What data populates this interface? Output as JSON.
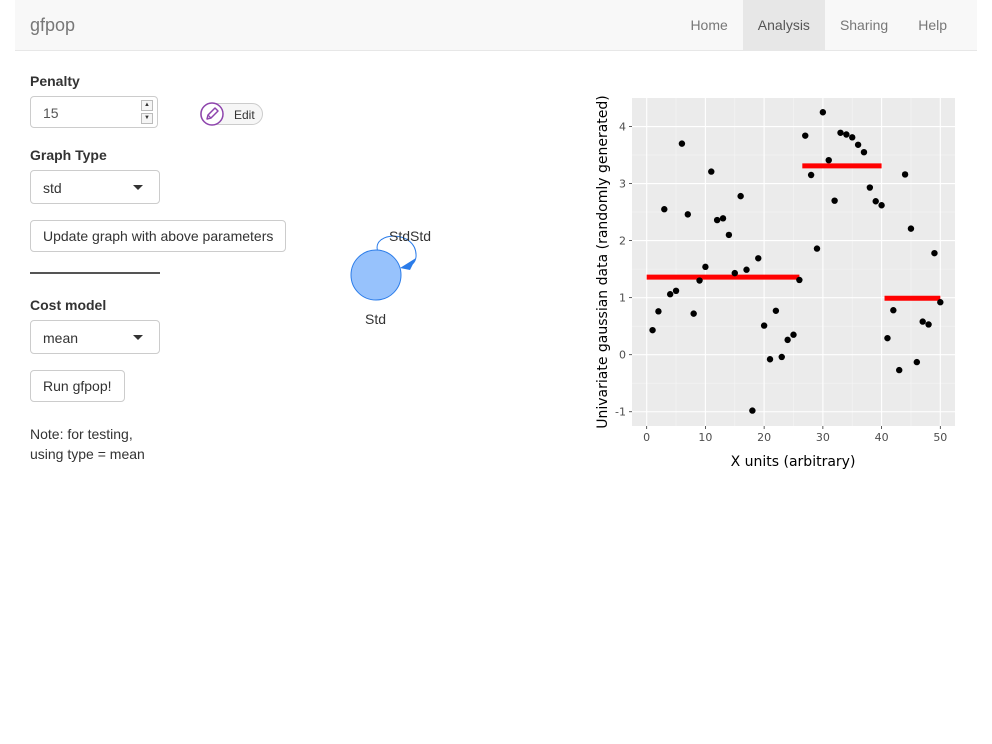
{
  "navbar": {
    "brand": "gfpop",
    "items": [
      {
        "label": "Home",
        "active": false
      },
      {
        "label": "Analysis",
        "active": true
      },
      {
        "label": "Sharing",
        "active": false
      },
      {
        "label": "Help",
        "active": false
      }
    ]
  },
  "form": {
    "penalty_label": "Penalty",
    "penalty_value": "15",
    "edit_label": "Edit",
    "graph_type_label": "Graph Type",
    "graph_type_value": "std",
    "update_button": "Update graph with above parameters",
    "cost_model_label": "Cost model",
    "cost_model_value": "mean",
    "run_button": "Run gfpop!",
    "note_line1": "Note: for testing,",
    "note_line2": "using type = mean"
  },
  "graph": {
    "node_label": "Std",
    "edge_label": "StdStd",
    "node_color": "#97c2fc",
    "node_border": "#2b7ce9"
  },
  "chart_data": {
    "type": "scatter",
    "xlabel": "X units (arbitrary)",
    "ylabel": "Univariate gaussian data (randomly generated)",
    "xlim": [
      -2.5,
      52.5
    ],
    "ylim": [
      -1.25,
      4.5
    ],
    "x_ticks": [
      0,
      10,
      20,
      30,
      40,
      50
    ],
    "y_ticks": [
      -1,
      0,
      1,
      2,
      3,
      4
    ],
    "grid": true,
    "points": [
      [
        1,
        0.43
      ],
      [
        2,
        0.76
      ],
      [
        3,
        2.55
      ],
      [
        4,
        1.06
      ],
      [
        5,
        1.12
      ],
      [
        6,
        3.7
      ],
      [
        7,
        2.46
      ],
      [
        8,
        0.72
      ],
      [
        9,
        1.3
      ],
      [
        10,
        1.54
      ],
      [
        11,
        3.21
      ],
      [
        12,
        2.36
      ],
      [
        13,
        2.39
      ],
      [
        14,
        2.1
      ],
      [
        15,
        1.43
      ],
      [
        16,
        2.78
      ],
      [
        17,
        1.49
      ],
      [
        18,
        -0.98
      ],
      [
        19,
        1.69
      ],
      [
        20,
        0.51
      ],
      [
        21,
        -0.08
      ],
      [
        22,
        0.77
      ],
      [
        23,
        -0.04
      ],
      [
        24,
        0.26
      ],
      [
        25,
        0.35
      ],
      [
        26,
        1.31
      ],
      [
        27,
        3.84
      ],
      [
        28,
        3.15
      ],
      [
        29,
        1.86
      ],
      [
        30,
        4.25
      ],
      [
        31,
        3.41
      ],
      [
        32,
        2.7
      ],
      [
        33,
        3.89
      ],
      [
        34,
        3.86
      ],
      [
        35,
        3.81
      ],
      [
        36,
        3.68
      ],
      [
        37,
        3.55
      ],
      [
        38,
        2.93
      ],
      [
        39,
        2.69
      ],
      [
        40,
        2.62
      ],
      [
        41,
        0.29
      ],
      [
        42,
        0.78
      ],
      [
        43,
        -0.27
      ],
      [
        44,
        3.16
      ],
      [
        45,
        2.21
      ],
      [
        46,
        -0.13
      ],
      [
        47,
        0.58
      ],
      [
        48,
        0.53
      ],
      [
        49,
        1.78
      ],
      [
        50,
        0.92
      ]
    ],
    "segments": [
      {
        "x0": 0,
        "x1": 26,
        "y": 1.36
      },
      {
        "x0": 26.5,
        "x1": 40,
        "y": 3.31
      },
      {
        "x0": 40.5,
        "x1": 50,
        "y": 0.99
      }
    ],
    "point_color": "#000000",
    "segment_color": "#ff0000",
    "panel_color": "#ebebeb"
  }
}
